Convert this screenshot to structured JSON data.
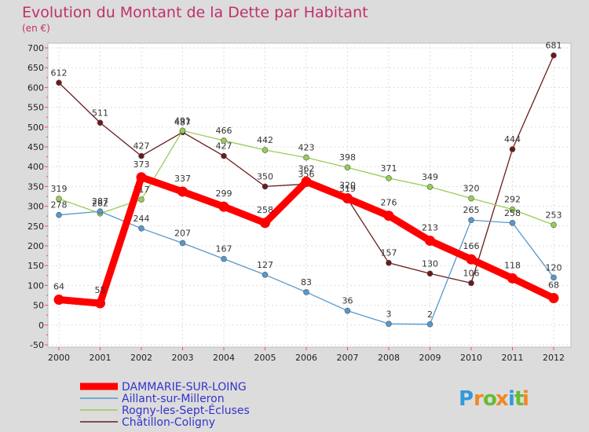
{
  "chart_data": {
    "type": "line",
    "title": "Evolution du Montant de la Dette par Habitant",
    "subtitle": "(en €)",
    "xlabel": "",
    "ylabel": "",
    "ylim": [
      -50,
      700
    ],
    "y_ticks": [
      -50,
      0,
      50,
      100,
      150,
      200,
      250,
      300,
      350,
      400,
      450,
      500,
      550,
      600,
      650,
      700
    ],
    "x": [
      "2000",
      "2001",
      "2002",
      "2003",
      "2004",
      "2005",
      "2006",
      "2007",
      "2008",
      "2009",
      "2010",
      "2011",
      "2012"
    ],
    "grid": true,
    "legend_position": "bottom-left",
    "series": [
      {
        "name": "Châtillon-Coligny",
        "color": "#6b1a1a",
        "values": [
          612,
          511,
          427,
          487,
          427,
          350,
          356,
          319,
          157,
          130,
          106,
          444,
          681
        ]
      },
      {
        "name": "Rogny-les-Sept-Écluses",
        "color": "#99cc55",
        "values": [
          319,
          282,
          317,
          491,
          466,
          442,
          423,
          398,
          371,
          349,
          320,
          292,
          253
        ]
      },
      {
        "name": "Aillant-sur-Milleron",
        "color": "#5599cc",
        "values": [
          278,
          287,
          244,
          207,
          167,
          127,
          83,
          36,
          3,
          2,
          265,
          258,
          120
        ]
      },
      {
        "name": "DAMMARIE-SUR-LOING",
        "color": "#ff0000",
        "values": [
          64,
          55,
          373,
          337,
          299,
          258,
          362,
          320,
          276,
          213,
          166,
          118,
          68
        ]
      }
    ],
    "legend_order": [
      "DAMMARIE-SUR-LOING",
      "Aillant-sur-Milleron",
      "Rogny-les-Sept-Écluses",
      "Châtillon-Coligny"
    ]
  },
  "brand": {
    "letters": [
      "P",
      "r",
      "o",
      "x",
      "i",
      "t",
      "i"
    ],
    "colors": [
      "#3399dd",
      "#ee8822",
      "#66bb33",
      "#ee8822",
      "#3399dd",
      "#66bb33",
      "#ee8822"
    ]
  }
}
